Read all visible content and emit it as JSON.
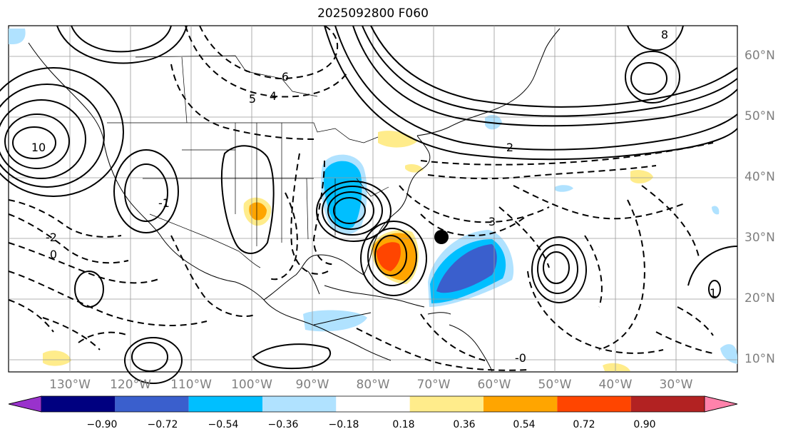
{
  "title": "2025092800 F060",
  "lat_labels": [
    "60°N",
    "50°N",
    "40°N",
    "30°N",
    "20°N",
    "10°N"
  ],
  "lon_labels": [
    "130°W",
    "120°W",
    "110°W",
    "100°W",
    "90°W",
    "80°W",
    "70°W",
    "60°W",
    "50°W",
    "40°W",
    "30°W"
  ],
  "colorbar": {
    "colors": [
      "#9932cc",
      "#000080",
      "#3a5fcd",
      "#00bfff",
      "#b0e2ff",
      "#ffffff",
      "#ffec8b",
      "#ffa500",
      "#ff4500",
      "#b22222",
      "#ff82ab"
    ],
    "tick_labels": [
      "−0.90",
      "−0.72",
      "−0.54",
      "−0.36",
      "−0.18",
      "0.18",
      "0.36",
      "0.54",
      "0.72",
      "0.90"
    ]
  },
  "contour_labels": [
    "6",
    "5",
    "4",
    "8",
    "10",
    "2",
    "0",
    "-2",
    "-1",
    "1",
    "3",
    "-0"
  ],
  "storm_marker": "storm-center",
  "gridlines": true
}
